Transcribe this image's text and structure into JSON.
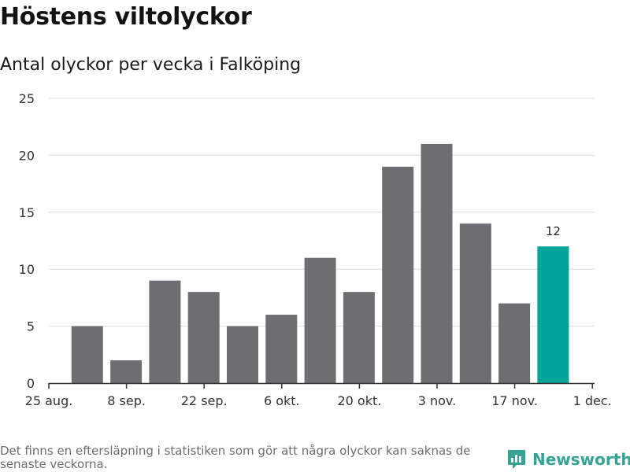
{
  "header": {
    "title": "Höstens viltolyckor",
    "subtitle": "Antal olyckor per vecka i Falköping"
  },
  "footer": {
    "note": "Det finns en eftersläpning i statistiken som gör att några olyckor kan saknas de senaste veckorna.",
    "brand": "Newsworthy"
  },
  "colors": {
    "bar": "#6d6d72",
    "highlight": "#00a499",
    "grid": "#dedede",
    "axis": "#333333",
    "brand": "#34a394"
  },
  "chart_data": {
    "type": "bar",
    "title": "Höstens viltolyckor",
    "subtitle": "Antal olyckor per vecka i Falköping",
    "xlabel": "",
    "ylabel": "",
    "ylim": [
      0,
      25
    ],
    "yticks": [
      0,
      5,
      10,
      15,
      20,
      25
    ],
    "x_ticks": [
      "25 aug.",
      "8 sep.",
      "22 sep.",
      "6 okt.",
      "20 okt.",
      "3 nov.",
      "17 nov.",
      "1 dec."
    ],
    "values": [
      5,
      2,
      9,
      8,
      5,
      6,
      11,
      8,
      19,
      21,
      14,
      7,
      12
    ],
    "highlight_index": 12,
    "data_labels": [
      {
        "index": 12,
        "text": "12"
      }
    ],
    "grid": true,
    "legend": "none"
  }
}
